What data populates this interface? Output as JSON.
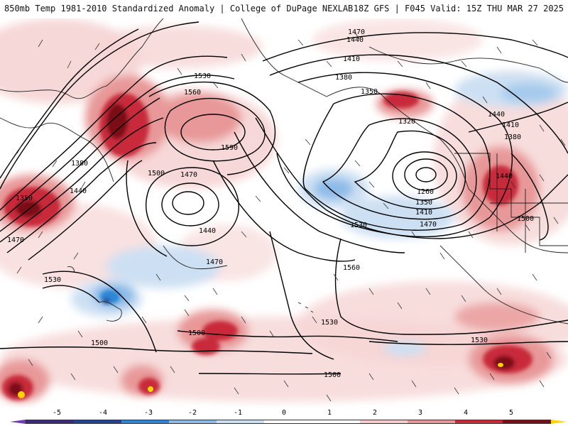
{
  "header": {
    "title_left": "850mb Temp 1981-2010 Standardized Anomaly | College of DuPage NEXLAB",
    "title_right": "18Z GFS | F045 Valid: 15Z THU MAR 27 2025"
  },
  "contour_labels": {
    "c1470_top": "1470",
    "c1440_top": "1440",
    "c1410_top": "1410",
    "c1380_top": "1380",
    "c1350_ak": "1350",
    "c1320": "1320",
    "c1260": "1260",
    "c1350_low": "1350",
    "c1410_low": "1410",
    "c1470_low": "1470",
    "c1530_mid": "1530",
    "c1530_w1": "1530",
    "c1560_nw": "1560",
    "c1590": "1590",
    "c1500_nw": "1500",
    "c1470_nw": "1470",
    "c1380_w": "1380",
    "c1440_w": "1440",
    "c1350_w": "1350",
    "c1470_w": "1470",
    "c1440_mid": "1440",
    "c1470_mid2": "1470",
    "c1530_w2": "1530",
    "c1560_mid": "1560",
    "c1440_e": "1440",
    "c1410_e": "1410",
    "c1380_e": "1380",
    "c1440_e2": "1440",
    "c1500_e": "1500",
    "c1500_s1": "1500",
    "c1530_s": "1530",
    "c1530_se": "1530",
    "c1500_sw": "1500",
    "c1500_s2": "1500"
  },
  "colorbar": {
    "ticks": [
      "-5",
      "-4",
      "-3",
      "-2",
      "-1",
      "0",
      "1",
      "2",
      "3",
      "4",
      "5"
    ],
    "colors": [
      "#3a2a78",
      "#24428f",
      "#2f86d6",
      "#8cbbe8",
      "#cde0f3",
      "#ffffff",
      "#ffffff",
      "#f6cccc",
      "#e89898",
      "#c82a3a",
      "#7a0f18"
    ],
    "min_color": "#6f3fa8",
    "max_color": "#ffd400"
  }
}
